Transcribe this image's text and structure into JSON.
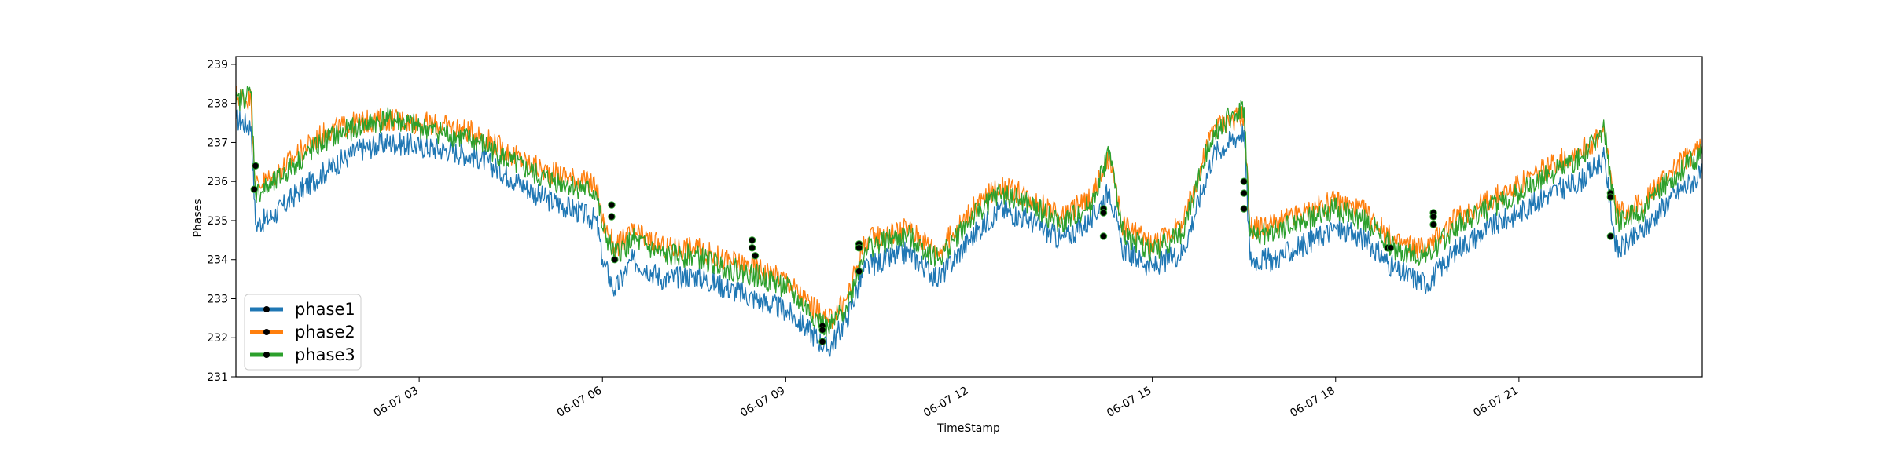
{
  "chart_data": {
    "type": "line",
    "xlabel": "TimeStamp",
    "ylabel": "Phases",
    "x_range_hours": [
      0,
      24
    ],
    "ylim": [
      231,
      239.2
    ],
    "x_ticks": [
      {
        "hour": 3,
        "label": "06-07 03"
      },
      {
        "hour": 6,
        "label": "06-07 06"
      },
      {
        "hour": 9,
        "label": "06-07 09"
      },
      {
        "hour": 12,
        "label": "06-07 12"
      },
      {
        "hour": 15,
        "label": "06-07 15"
      },
      {
        "hour": 18,
        "label": "06-07 18"
      },
      {
        "hour": 21,
        "label": "06-07 21"
      }
    ],
    "y_ticks": [
      231,
      232,
      233,
      234,
      235,
      236,
      237,
      238,
      239
    ],
    "grid": false,
    "legend_position": "lower-left",
    "series": [
      {
        "name": "phase1",
        "color": "#1f77b4",
        "points": [
          [
            0,
            237.6
          ],
          [
            0.25,
            237.4
          ],
          [
            0.32,
            234.9
          ],
          [
            0.6,
            235.1
          ],
          [
            1.0,
            235.7
          ],
          [
            1.5,
            236.3
          ],
          [
            2.0,
            236.8
          ],
          [
            2.5,
            237.0
          ],
          [
            3.0,
            236.9
          ],
          [
            3.5,
            236.8
          ],
          [
            4.0,
            236.6
          ],
          [
            4.5,
            236.1
          ],
          [
            5.0,
            235.6
          ],
          [
            5.5,
            235.3
          ],
          [
            5.9,
            235.0
          ],
          [
            6.0,
            234.0
          ],
          [
            6.2,
            233.2
          ],
          [
            6.5,
            234.0
          ],
          [
            7.0,
            233.5
          ],
          [
            7.5,
            233.6
          ],
          [
            8.0,
            233.3
          ],
          [
            8.5,
            233.0
          ],
          [
            9.0,
            232.7
          ],
          [
            9.3,
            232.3
          ],
          [
            9.7,
            231.7
          ],
          [
            10.0,
            232.5
          ],
          [
            10.3,
            233.8
          ],
          [
            11.0,
            234.2
          ],
          [
            11.5,
            233.5
          ],
          [
            12.0,
            234.5
          ],
          [
            12.5,
            235.3
          ],
          [
            13.0,
            235.0
          ],
          [
            13.5,
            234.5
          ],
          [
            14.0,
            235.0
          ],
          [
            14.3,
            235.8
          ],
          [
            14.5,
            234.3
          ],
          [
            15.0,
            233.8
          ],
          [
            15.5,
            234.2
          ],
          [
            16.0,
            236.7
          ],
          [
            16.5,
            237.3
          ],
          [
            16.6,
            234.0
          ],
          [
            17.0,
            234.0
          ],
          [
            17.5,
            234.4
          ],
          [
            18.0,
            234.8
          ],
          [
            18.5,
            234.5
          ],
          [
            19.0,
            233.7
          ],
          [
            19.5,
            233.4
          ],
          [
            20.0,
            234.3
          ],
          [
            20.5,
            234.8
          ],
          [
            21.0,
            235.2
          ],
          [
            21.5,
            235.7
          ],
          [
            22.0,
            236.0
          ],
          [
            22.4,
            236.6
          ],
          [
            22.6,
            234.2
          ],
          [
            23.0,
            234.7
          ],
          [
            23.5,
            235.6
          ],
          [
            24.0,
            236.2
          ]
        ]
      },
      {
        "name": "phase2",
        "color": "#ff7f0e",
        "points": [
          [
            0,
            238.2
          ],
          [
            0.25,
            238.1
          ],
          [
            0.32,
            235.9
          ],
          [
            0.6,
            236.1
          ],
          [
            1.0,
            236.7
          ],
          [
            1.5,
            237.3
          ],
          [
            2.0,
            237.5
          ],
          [
            2.5,
            237.6
          ],
          [
            3.0,
            237.5
          ],
          [
            3.5,
            237.4
          ],
          [
            4.0,
            237.2
          ],
          [
            4.5,
            236.7
          ],
          [
            5.0,
            236.3
          ],
          [
            5.5,
            236.1
          ],
          [
            5.9,
            235.9
          ],
          [
            6.0,
            235.0
          ],
          [
            6.2,
            234.3
          ],
          [
            6.5,
            234.7
          ],
          [
            7.0,
            234.3
          ],
          [
            7.5,
            234.3
          ],
          [
            8.0,
            234.0
          ],
          [
            8.5,
            233.8
          ],
          [
            9.0,
            233.5
          ],
          [
            9.3,
            233.0
          ],
          [
            9.7,
            232.4
          ],
          [
            10.0,
            233.0
          ],
          [
            10.3,
            234.5
          ],
          [
            11.0,
            234.8
          ],
          [
            11.5,
            234.2
          ],
          [
            12.0,
            235.2
          ],
          [
            12.5,
            235.9
          ],
          [
            13.0,
            235.6
          ],
          [
            13.5,
            235.1
          ],
          [
            14.0,
            235.6
          ],
          [
            14.3,
            236.6
          ],
          [
            14.5,
            234.9
          ],
          [
            15.0,
            234.4
          ],
          [
            15.5,
            234.9
          ],
          [
            16.0,
            237.4
          ],
          [
            16.5,
            237.7
          ],
          [
            16.6,
            234.8
          ],
          [
            17.0,
            234.9
          ],
          [
            17.5,
            235.2
          ],
          [
            18.0,
            235.5
          ],
          [
            18.5,
            235.2
          ],
          [
            19.0,
            234.4
          ],
          [
            19.5,
            234.3
          ],
          [
            20.0,
            235.1
          ],
          [
            20.5,
            235.5
          ],
          [
            21.0,
            235.9
          ],
          [
            21.5,
            236.4
          ],
          [
            22.0,
            236.8
          ],
          [
            22.4,
            237.2
          ],
          [
            22.6,
            235.2
          ],
          [
            23.0,
            235.4
          ],
          [
            23.5,
            236.3
          ],
          [
            24.0,
            236.9
          ]
        ]
      },
      {
        "name": "phase3",
        "color": "#2ca02c",
        "points": [
          [
            0,
            238.0
          ],
          [
            0.25,
            238.3
          ],
          [
            0.32,
            235.7
          ],
          [
            0.6,
            235.9
          ],
          [
            1.0,
            236.5
          ],
          [
            1.5,
            237.1
          ],
          [
            2.0,
            237.4
          ],
          [
            2.5,
            237.6
          ],
          [
            3.0,
            237.4
          ],
          [
            3.5,
            237.2
          ],
          [
            4.0,
            237.0
          ],
          [
            4.5,
            236.5
          ],
          [
            5.0,
            236.1
          ],
          [
            5.5,
            235.9
          ],
          [
            5.9,
            235.7
          ],
          [
            6.0,
            234.8
          ],
          [
            6.2,
            234.1
          ],
          [
            6.5,
            234.5
          ],
          [
            7.0,
            234.1
          ],
          [
            7.5,
            234.1
          ],
          [
            8.0,
            233.8
          ],
          [
            8.5,
            233.6
          ],
          [
            9.0,
            233.3
          ],
          [
            9.3,
            232.8
          ],
          [
            9.7,
            232.2
          ],
          [
            10.0,
            232.8
          ],
          [
            10.3,
            234.3
          ],
          [
            11.0,
            234.6
          ],
          [
            11.5,
            234.0
          ],
          [
            12.0,
            235.0
          ],
          [
            12.5,
            235.7
          ],
          [
            13.0,
            235.4
          ],
          [
            13.5,
            234.9
          ],
          [
            14.0,
            235.4
          ],
          [
            14.3,
            236.8
          ],
          [
            14.5,
            234.7
          ],
          [
            15.0,
            234.2
          ],
          [
            15.5,
            234.7
          ],
          [
            16.0,
            237.3
          ],
          [
            16.5,
            237.9
          ],
          [
            16.6,
            234.6
          ],
          [
            17.0,
            234.7
          ],
          [
            17.5,
            235.0
          ],
          [
            18.0,
            235.3
          ],
          [
            18.5,
            235.0
          ],
          [
            19.0,
            234.2
          ],
          [
            19.5,
            234.1
          ],
          [
            20.0,
            234.9
          ],
          [
            20.5,
            235.3
          ],
          [
            21.0,
            235.7
          ],
          [
            21.5,
            236.2
          ],
          [
            22.0,
            236.6
          ],
          [
            22.4,
            237.3
          ],
          [
            22.6,
            235.0
          ],
          [
            23.0,
            235.2
          ],
          [
            23.5,
            236.1
          ],
          [
            24.0,
            236.7
          ]
        ]
      }
    ],
    "markers": [
      {
        "hour": 0.3,
        "value": 235.8
      },
      {
        "hour": 0.32,
        "value": 236.4
      },
      {
        "hour": 6.15,
        "value": 235.4
      },
      {
        "hour": 6.15,
        "value": 235.1
      },
      {
        "hour": 6.2,
        "value": 234.0
      },
      {
        "hour": 8.45,
        "value": 234.5
      },
      {
        "hour": 8.45,
        "value": 234.3
      },
      {
        "hour": 8.5,
        "value": 234.1
      },
      {
        "hour": 9.6,
        "value": 232.3
      },
      {
        "hour": 9.6,
        "value": 232.2
      },
      {
        "hour": 9.6,
        "value": 231.9
      },
      {
        "hour": 10.2,
        "value": 234.4
      },
      {
        "hour": 10.2,
        "value": 234.3
      },
      {
        "hour": 10.2,
        "value": 233.7
      },
      {
        "hour": 14.2,
        "value": 235.3
      },
      {
        "hour": 14.2,
        "value": 235.2
      },
      {
        "hour": 14.2,
        "value": 234.6
      },
      {
        "hour": 16.5,
        "value": 236.0
      },
      {
        "hour": 16.5,
        "value": 235.7
      },
      {
        "hour": 16.5,
        "value": 235.3
      },
      {
        "hour": 18.85,
        "value": 234.3
      },
      {
        "hour": 18.9,
        "value": 234.3
      },
      {
        "hour": 19.6,
        "value": 235.2
      },
      {
        "hour": 19.6,
        "value": 235.1
      },
      {
        "hour": 19.6,
        "value": 234.9
      },
      {
        "hour": 22.5,
        "value": 235.7
      },
      {
        "hour": 22.5,
        "value": 235.6
      },
      {
        "hour": 22.5,
        "value": 234.6
      }
    ]
  }
}
